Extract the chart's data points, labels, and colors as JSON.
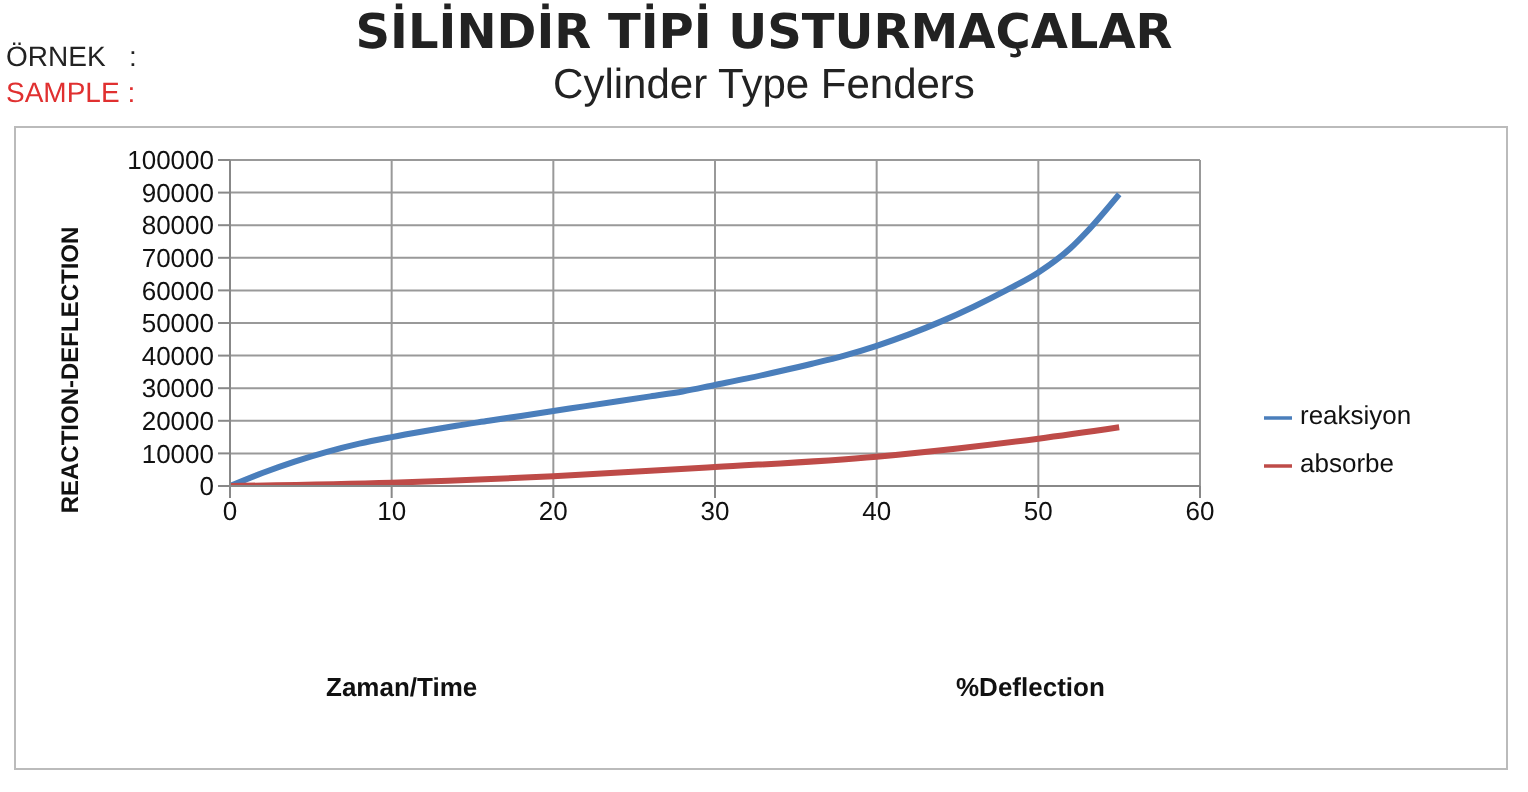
{
  "chart_data": {
    "type": "line",
    "title": "SİLİNDİR TİPİ USTURMAÇALAR",
    "subtitle": "Cylinder Type Fenders",
    "ylabel": "REACTION-DEFLECTION",
    "annotations": [
      "ÖRNEK   :",
      "SAMPLE :",
      "%Deflection",
      "Zaman/Time"
    ],
    "xlim": [
      0,
      60
    ],
    "xticks": [
      0,
      10,
      20,
      30,
      40,
      50,
      60
    ],
    "ylim": [
      0,
      100000
    ],
    "yticks": [
      0,
      10000,
      20000,
      30000,
      40000,
      50000,
      60000,
      70000,
      80000,
      90000,
      100000
    ],
    "grid": true,
    "legend": "right",
    "marker": "none",
    "line_style": "solid",
    "series": [
      {
        "name": "reaksiyon",
        "color": "#4a7ebb",
        "x": [
          0,
          2,
          4,
          6,
          8,
          10,
          12,
          14,
          16,
          18,
          20,
          22,
          24,
          26,
          28,
          30,
          32,
          34,
          36,
          38,
          40,
          42,
          44,
          46,
          48,
          50,
          52,
          53,
          55
        ],
        "values": [
          0,
          4000,
          7500,
          10500,
          13000,
          15000,
          16800,
          18500,
          20000,
          21500,
          23000,
          24500,
          26000,
          27500,
          29000,
          31000,
          33000,
          35200,
          37500,
          40000,
          43000,
          46500,
          50500,
          55000,
          60000,
          65500,
          73000,
          78000,
          89500
        ]
      },
      {
        "name": "absorbe",
        "color": "#be4b48",
        "x": [
          0,
          10,
          20,
          30,
          40,
          45,
          50,
          55
        ],
        "values": [
          0,
          1000,
          3000,
          5800,
          9000,
          11500,
          14500,
          18000
        ]
      }
    ]
  }
}
